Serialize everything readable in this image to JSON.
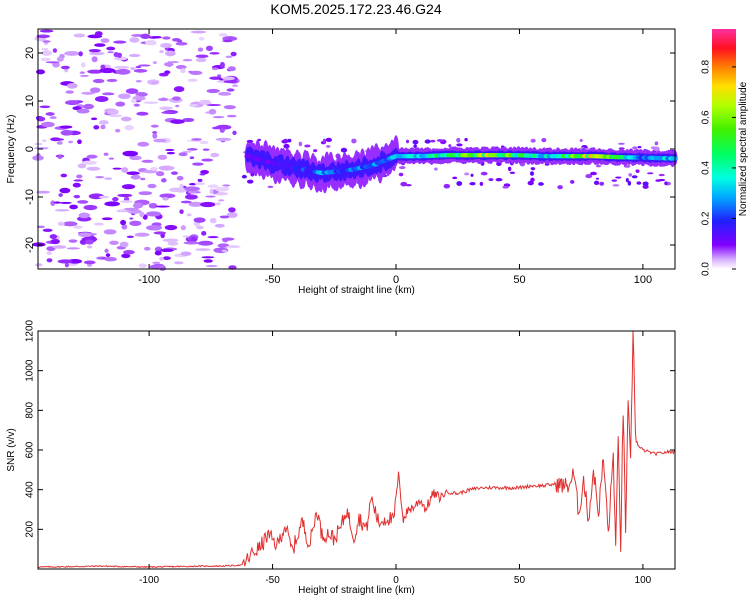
{
  "title": "KOM5.2025.172.23.46.G24",
  "colors": {
    "snr_line": "#e03030",
    "frame": "#000000",
    "background": "#ffffff"
  },
  "chart_data": [
    {
      "type": "heatmap",
      "title": "",
      "xlabel": "Height of straight line (km)",
      "ylabel": "Frequency (Hz)",
      "xlim": [
        -145,
        113
      ],
      "ylim": [
        -25,
        25
      ],
      "xticks": [
        -100,
        -50,
        0,
        50,
        100
      ],
      "xtick_labels": [
        "-100",
        "-50",
        "0",
        "50",
        "100"
      ],
      "yticks": [
        -20,
        -10,
        0,
        10,
        20
      ],
      "ytick_labels": [
        "-20",
        "-10",
        "0",
        "10",
        "20"
      ],
      "colorbar": {
        "label": "Normalized spectral amplitude",
        "range": [
          0,
          0.95
        ],
        "ticks": [
          0.0,
          0.2,
          0.4,
          0.6,
          0.8
        ],
        "tick_labels": [
          "0.0",
          "0.2",
          "0.4",
          "0.6",
          "0.8"
        ],
        "colormap": "gist_ncar-like (purple, blue, cyan, green, yellow, orange, red, magenta)"
      },
      "description_values": {
        "noise_region_x": [
          -145,
          -65
        ],
        "signal_onset_x": -62,
        "ridge_path": [
          {
            "x": -60,
            "f": -1.5,
            "amp": 0.15
          },
          {
            "x": -50,
            "f": -3.0,
            "amp": 0.15
          },
          {
            "x": -40,
            "f": -4.0,
            "amp": 0.2
          },
          {
            "x": -30,
            "f": -5.0,
            "amp": 0.3
          },
          {
            "x": -20,
            "f": -4.5,
            "amp": 0.25
          },
          {
            "x": -10,
            "f": -3.5,
            "amp": 0.3
          },
          {
            "x": 0,
            "f": -1.5,
            "amp": 0.3
          },
          {
            "x": 10,
            "f": -1.5,
            "amp": 0.4
          },
          {
            "x": 20,
            "f": -1.3,
            "amp": 0.5
          },
          {
            "x": 30,
            "f": -1.3,
            "amp": 0.6
          },
          {
            "x": 40,
            "f": -1.3,
            "amp": 0.7
          },
          {
            "x": 50,
            "f": -1.3,
            "amp": 0.5
          },
          {
            "x": 60,
            "f": -1.5,
            "amp": 0.4
          },
          {
            "x": 70,
            "f": -1.5,
            "amp": 0.6
          },
          {
            "x": 80,
            "f": -1.5,
            "amp": 0.7
          },
          {
            "x": 90,
            "f": -1.7,
            "amp": 0.5
          },
          {
            "x": 100,
            "f": -1.8,
            "amp": 0.3
          },
          {
            "x": 113,
            "f": -2.0,
            "amp": 0.4
          }
        ]
      }
    },
    {
      "type": "line",
      "title": "",
      "xlabel": "Height of straight line (km)",
      "ylabel": "SNR (v/v)",
      "xlim": [
        -145,
        113
      ],
      "ylim": [
        0,
        1200
      ],
      "xticks": [
        -100,
        -50,
        0,
        50,
        100
      ],
      "xtick_labels": [
        "-100",
        "-50",
        "0",
        "50",
        "100"
      ],
      "yticks": [
        200,
        400,
        600,
        800,
        1000,
        1200
      ],
      "ytick_labels": [
        "200",
        "400",
        "600",
        "800",
        "1000",
        "1200"
      ],
      "series": [
        {
          "color": "#e03030",
          "x": [
            -145,
            -130,
            -120,
            -110,
            -100,
            -90,
            -80,
            -70,
            -62,
            -58,
            -55,
            -52,
            -48,
            -45,
            -42,
            -38,
            -35,
            -32,
            -30,
            -27,
            -25,
            -22,
            -20,
            -17,
            -15,
            -12,
            -10,
            -7,
            -5,
            -3,
            -1,
            1,
            3,
            5,
            7,
            10,
            12,
            15,
            18,
            20,
            25,
            30,
            35,
            40,
            45,
            50,
            55,
            60,
            65,
            68,
            70,
            72,
            74,
            76,
            78,
            80,
            82,
            84,
            86,
            88,
            89,
            90,
            91,
            92,
            93,
            94,
            95,
            96,
            97,
            98,
            100,
            105,
            110,
            113
          ],
          "y": [
            10,
            12,
            15,
            12,
            10,
            12,
            14,
            15,
            20,
            80,
            110,
            170,
            120,
            220,
            90,
            240,
            120,
            300,
            170,
            180,
            150,
            220,
            300,
            160,
            260,
            200,
            360,
            230,
            250,
            260,
            240,
            470,
            250,
            300,
            310,
            350,
            300,
            380,
            360,
            390,
            380,
            400,
            410,
            410,
            410,
            410,
            420,
            420,
            430,
            420,
            420,
            480,
            280,
            450,
            250,
            500,
            280,
            560,
            180,
            580,
            100,
            650,
            120,
            800,
            200,
            830,
            520,
            1200,
            700,
            620,
            600,
            580,
            590,
            590
          ]
        }
      ]
    }
  ]
}
